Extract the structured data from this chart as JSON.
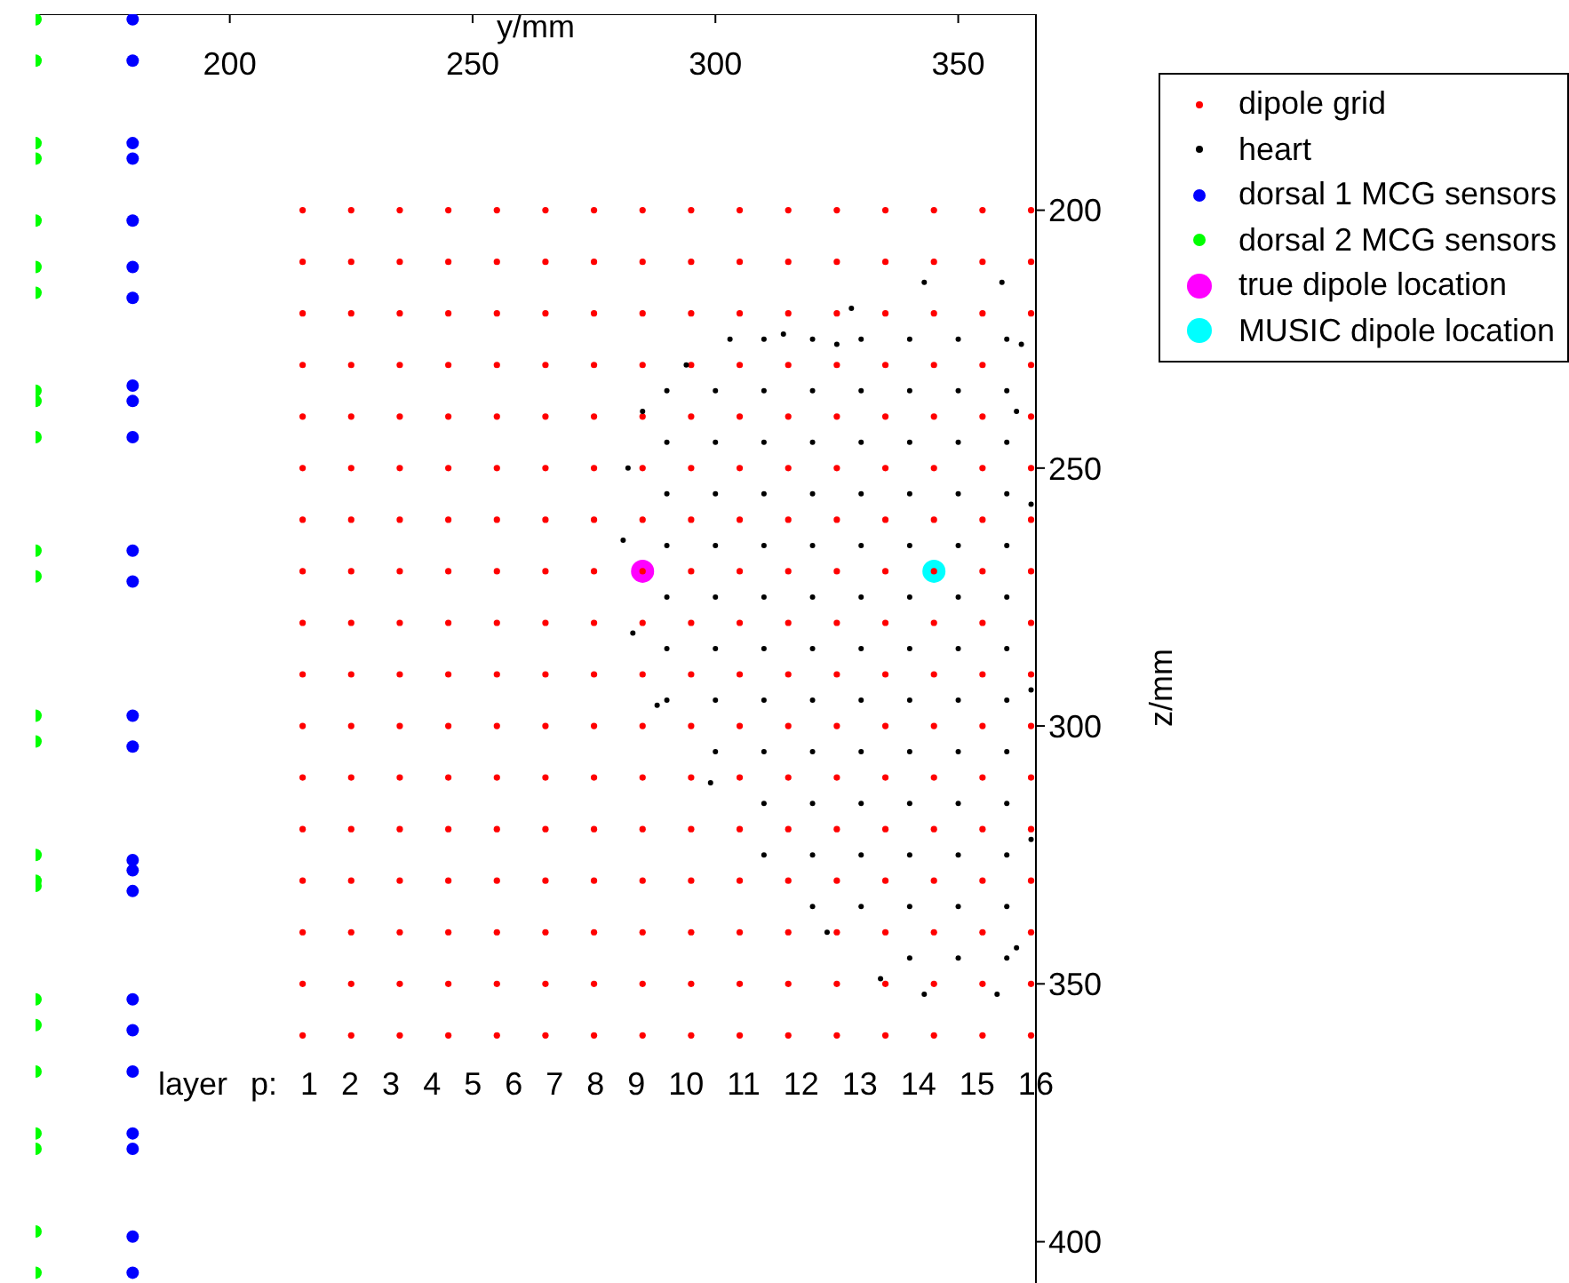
{
  "chart_data": {
    "type": "scatter",
    "xlabel": "y/mm",
    "ylabel": "z/mm",
    "xlim": [
      160,
      366
    ],
    "xticks": [
      200,
      250,
      300,
      350
    ],
    "ylim": [
      408,
      162
    ],
    "yticks": [
      200,
      250,
      300,
      350,
      400
    ],
    "legend": "top right",
    "marker": "circle",
    "series": [
      {
        "name": "dipole grid",
        "color": "#ff0000",
        "x": [
          215,
          225,
          235,
          245,
          255,
          265,
          275,
          285,
          295,
          305,
          315,
          325,
          335,
          345,
          355,
          365,
          215,
          225,
          235,
          245,
          255,
          265,
          275,
          285,
          295,
          305,
          315,
          325,
          335,
          345,
          355,
          365,
          215,
          225,
          235,
          245,
          255,
          265,
          275,
          285,
          295,
          305,
          315,
          325,
          335,
          345,
          355,
          365,
          215,
          225,
          235,
          245,
          255,
          265,
          275,
          285,
          295,
          305,
          315,
          325,
          335,
          345,
          355,
          365,
          215,
          225,
          235,
          245,
          255,
          265,
          275,
          285,
          295,
          305,
          315,
          325,
          335,
          345,
          355,
          365,
          215,
          225,
          235,
          245,
          255,
          265,
          275,
          285,
          295,
          305,
          315,
          325,
          335,
          345,
          355,
          365,
          215,
          225,
          235,
          245,
          255,
          265,
          275,
          285,
          295,
          305,
          315,
          325,
          335,
          345,
          355,
          365,
          215,
          225,
          235,
          245,
          255,
          265,
          275,
          285,
          295,
          305,
          315,
          325,
          335,
          345,
          355,
          365,
          215,
          225,
          235,
          245,
          255,
          265,
          275,
          285,
          295,
          305,
          315,
          325,
          335,
          345,
          355,
          365,
          215,
          225,
          235,
          245,
          255,
          265,
          275,
          285,
          295,
          305,
          315,
          325,
          335,
          345,
          355,
          365,
          215,
          225,
          235,
          245,
          255,
          265,
          275,
          285,
          295,
          305,
          315,
          325,
          335,
          345,
          355,
          365,
          215,
          225,
          235,
          245,
          255,
          265,
          275,
          285,
          295,
          305,
          315,
          325,
          335,
          345,
          355,
          365,
          215,
          225,
          235,
          245,
          255,
          265,
          275,
          285,
          295,
          305,
          315,
          325,
          335,
          345,
          355,
          365,
          215,
          225,
          235,
          245,
          255,
          265,
          275,
          285,
          295,
          305,
          315,
          325,
          335,
          345,
          355,
          365,
          215,
          225,
          235,
          245,
          255,
          265,
          275,
          285,
          295,
          305,
          315,
          325,
          335,
          345,
          355,
          365,
          215,
          225,
          235,
          245,
          255,
          265,
          275,
          285,
          295,
          305,
          315,
          325,
          335,
          345,
          355,
          365,
          215,
          225,
          235,
          245,
          255,
          265,
          275,
          285,
          295,
          305,
          315,
          325,
          335,
          345,
          355,
          365
        ],
        "values": [
          200,
          200,
          200,
          200,
          200,
          200,
          200,
          200,
          200,
          200,
          200,
          200,
          200,
          200,
          200,
          200,
          210,
          210,
          210,
          210,
          210,
          210,
          210,
          210,
          210,
          210,
          210,
          210,
          210,
          210,
          210,
          210,
          220,
          220,
          220,
          220,
          220,
          220,
          220,
          220,
          220,
          220,
          220,
          220,
          220,
          220,
          220,
          220,
          230,
          230,
          230,
          230,
          230,
          230,
          230,
          230,
          230,
          230,
          230,
          230,
          230,
          230,
          230,
          230,
          240,
          240,
          240,
          240,
          240,
          240,
          240,
          240,
          240,
          240,
          240,
          240,
          240,
          240,
          240,
          240,
          250,
          250,
          250,
          250,
          250,
          250,
          250,
          250,
          250,
          250,
          250,
          250,
          250,
          250,
          250,
          250,
          260,
          260,
          260,
          260,
          260,
          260,
          260,
          260,
          260,
          260,
          260,
          260,
          260,
          260,
          260,
          260,
          270,
          270,
          270,
          270,
          270,
          270,
          270,
          270,
          270,
          270,
          270,
          270,
          270,
          270,
          270,
          270,
          280,
          280,
          280,
          280,
          280,
          280,
          280,
          280,
          280,
          280,
          280,
          280,
          280,
          280,
          280,
          280,
          290,
          290,
          290,
          290,
          290,
          290,
          290,
          290,
          290,
          290,
          290,
          290,
          290,
          290,
          290,
          290,
          300,
          300,
          300,
          300,
          300,
          300,
          300,
          300,
          300,
          300,
          300,
          300,
          300,
          300,
          300,
          300,
          310,
          310,
          310,
          310,
          310,
          310,
          310,
          310,
          310,
          310,
          310,
          310,
          310,
          310,
          310,
          310,
          320,
          320,
          320,
          320,
          320,
          320,
          320,
          320,
          320,
          320,
          320,
          320,
          320,
          320,
          320,
          320,
          330,
          330,
          330,
          330,
          330,
          330,
          330,
          330,
          330,
          330,
          330,
          330,
          330,
          330,
          330,
          330,
          340,
          340,
          340,
          340,
          340,
          340,
          340,
          340,
          340,
          340,
          340,
          340,
          340,
          340,
          340,
          340,
          350,
          350,
          350,
          350,
          350,
          350,
          350,
          350,
          350,
          350,
          350,
          350,
          350,
          350,
          350,
          350,
          360,
          360,
          360,
          360,
          360,
          360,
          360,
          360,
          360,
          360,
          360,
          360,
          360,
          360,
          360,
          360
        ]
      },
      {
        "name": "heart",
        "color": "#000000",
        "x": [
          328,
          343,
          359,
          363,
          362,
          365,
          365,
          365,
          362,
          358,
          343,
          334,
          323,
          310,
          299,
          288,
          283,
          281,
          282,
          285,
          294,
          303,
          314,
          325,
          310,
          320,
          330,
          340,
          350,
          360,
          290,
          300,
          310,
          320,
          330,
          340,
          350,
          360,
          290,
          300,
          310,
          320,
          330,
          340,
          350,
          360,
          290,
          300,
          310,
          320,
          330,
          340,
          350,
          360,
          290,
          300,
          310,
          320,
          330,
          340,
          350,
          360,
          290,
          300,
          310,
          320,
          330,
          340,
          350,
          360,
          290,
          300,
          310,
          320,
          330,
          340,
          350,
          360,
          290,
          300,
          310,
          320,
          330,
          340,
          350,
          360,
          300,
          310,
          320,
          330,
          340,
          350,
          360,
          310,
          320,
          330,
          340,
          350,
          360,
          320,
          330,
          340,
          350,
          360,
          320,
          330,
          340,
          350,
          360,
          340,
          350,
          360
        ],
        "values": [
          219,
          214,
          214,
          226,
          239,
          257,
          293,
          322,
          343,
          352,
          352,
          349,
          340,
          325,
          311,
          296,
          282,
          264,
          250,
          239,
          230,
          225,
          224,
          226,
          225,
          225,
          225,
          225,
          225,
          225,
          235,
          235,
          235,
          235,
          235,
          235,
          235,
          235,
          245,
          245,
          245,
          245,
          245,
          245,
          245,
          245,
          255,
          255,
          255,
          255,
          255,
          255,
          255,
          255,
          265,
          265,
          265,
          265,
          265,
          265,
          265,
          265,
          275,
          275,
          275,
          275,
          275,
          275,
          275,
          275,
          285,
          285,
          285,
          285,
          285,
          285,
          285,
          285,
          295,
          295,
          295,
          295,
          295,
          295,
          295,
          295,
          305,
          305,
          305,
          305,
          305,
          305,
          305,
          315,
          315,
          315,
          315,
          315,
          315,
          325,
          325,
          325,
          325,
          325,
          335,
          335,
          335,
          335,
          335,
          345,
          345,
          345
        ]
      },
      {
        "name": "dorsal 1 MCG sensors",
        "color": "#0000ff",
        "x": [
          180,
          180,
          180,
          180,
          180,
          180,
          180,
          180,
          180,
          180,
          180,
          180,
          180,
          180,
          180,
          180,
          180,
          180,
          180,
          180,
          180,
          180,
          180,
          180
        ],
        "values": [
          163,
          171,
          187,
          190,
          202,
          211,
          217,
          234,
          237,
          244,
          266,
          272,
          298,
          304,
          326,
          328,
          332,
          353,
          359,
          367,
          379,
          382,
          399,
          406
        ]
      },
      {
        "name": "dorsal 2 MCG sensors",
        "color": "#00ff00",
        "x": [
          160,
          160,
          160,
          160,
          160,
          160,
          160,
          160,
          160,
          160,
          160,
          160,
          160,
          160,
          160,
          160,
          160,
          160,
          160,
          160,
          160,
          160,
          160,
          160
        ],
        "values": [
          163,
          171,
          187,
          190,
          202,
          211,
          216,
          235,
          237,
          244,
          266,
          271,
          298,
          303,
          325,
          330,
          331,
          353,
          358,
          367,
          379,
          382,
          398,
          406
        ]
      },
      {
        "name": "true dipole location",
        "color": "#ff00ff",
        "x": [
          285
        ],
        "values": [
          270
        ]
      },
      {
        "name": "MUSIC dipole location",
        "color": "#00ffff",
        "x": [
          345
        ],
        "values": [
          270
        ]
      }
    ],
    "annotations": [
      "layer p: 1 2 3 4 5 6 7 8 9 10 11 12 13 14 15 16"
    ]
  }
}
